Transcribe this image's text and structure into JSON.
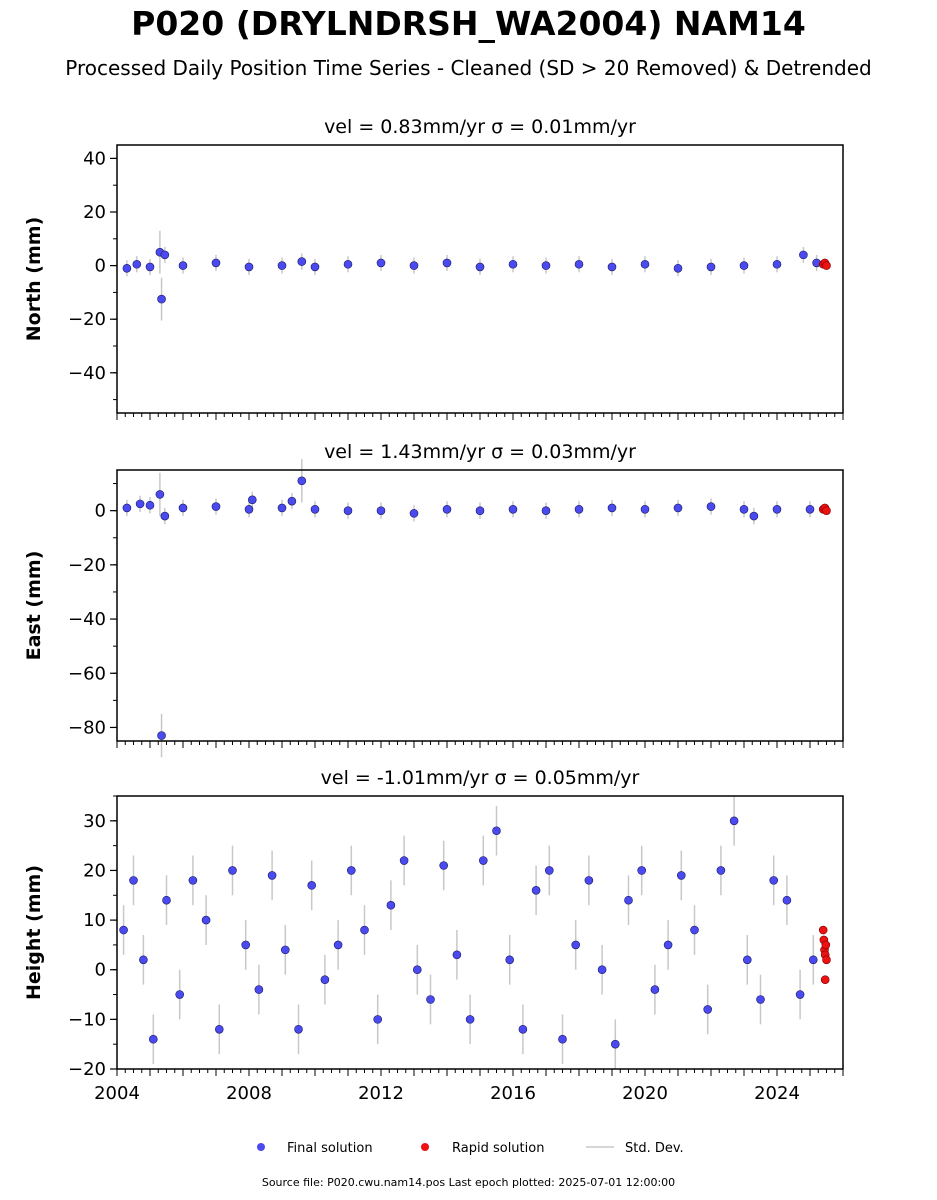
{
  "title": "P020 (DRYLNDRSH_WA2004) NAM14",
  "subtitle": "Processed Daily Position Time Series - Cleaned (SD > 20 Removed) & Detrended",
  "footer": "Source file: P020.cwu.nam14.pos  Last epoch plotted: 2025-07-01 12:00:00",
  "colors": {
    "final": "#4a4af0",
    "final_edge": "#1a1a60",
    "rapid": "#ee1111",
    "stddev": "#c8c8c8"
  },
  "legend": {
    "final": "Final solution",
    "rapid": "Rapid solution",
    "stddev": "Std. Dev."
  },
  "chart_data": [
    {
      "type": "scatter",
      "title": "vel = 0.83mm/yr   σ = 0.01mm/yr",
      "ylabel": "North (mm)",
      "xlim": [
        2004.0,
        2026.0
      ],
      "ylim": [
        -55,
        45
      ],
      "yticks": [
        -40,
        -20,
        0,
        20,
        40
      ],
      "xticks": [],
      "series": [
        {
          "name": "Final solution",
          "x": [
            2004.3,
            2004.6,
            2005.0,
            2005.3,
            2005.35,
            2005.45,
            2006.0,
            2007.0,
            2008.0,
            2009.0,
            2009.6,
            2010.0,
            2011.0,
            2012.0,
            2013.0,
            2014.0,
            2015.0,
            2016.0,
            2017.0,
            2018.0,
            2019.0,
            2020.0,
            2021.0,
            2022.0,
            2023.0,
            2024.0,
            2024.8,
            2025.2
          ],
          "y": [
            -1,
            0.5,
            -0.5,
            5,
            -12.5,
            4,
            0,
            1,
            -0.5,
            0,
            1.5,
            -0.5,
            0.5,
            1,
            0,
            1,
            -0.5,
            0.5,
            0,
            0.5,
            -0.5,
            0.5,
            -1,
            -0.5,
            0,
            0.5,
            4,
            1
          ]
        },
        {
          "name": "Rapid solution",
          "x": [
            2025.4,
            2025.45,
            2025.5
          ],
          "y": [
            0.5,
            1,
            0
          ]
        }
      ]
    },
    {
      "type": "scatter",
      "title": "vel = 1.43mm/yr   σ = 0.03mm/yr",
      "ylabel": "East (mm)",
      "xlim": [
        2004.0,
        2026.0
      ],
      "ylim": [
        -85,
        15
      ],
      "yticks": [
        -80,
        -60,
        -40,
        -20,
        0
      ],
      "xticks": [],
      "series": [
        {
          "name": "Final solution",
          "x": [
            2004.3,
            2004.7,
            2005.0,
            2005.3,
            2005.35,
            2005.45,
            2006.0,
            2007.0,
            2008.0,
            2008.1,
            2009.0,
            2009.3,
            2009.6,
            2010.0,
            2011.0,
            2012.0,
            2013.0,
            2014.0,
            2015.0,
            2016.0,
            2017.0,
            2018.0,
            2019.0,
            2020.0,
            2021.0,
            2022.0,
            2023.0,
            2023.3,
            2024.0,
            2025.0
          ],
          "y": [
            1,
            2.5,
            2,
            6,
            -83,
            -2,
            1,
            1.5,
            0.5,
            4,
            1,
            3.5,
            11,
            0.5,
            0,
            0,
            -1,
            0.5,
            0,
            0.5,
            0,
            0.5,
            1,
            0.5,
            1,
            1.5,
            0.5,
            -2,
            0.5,
            0.5
          ]
        },
        {
          "name": "Rapid solution",
          "x": [
            2025.4,
            2025.45,
            2025.5
          ],
          "y": [
            0.5,
            1,
            0
          ]
        }
      ]
    },
    {
      "type": "scatter",
      "title": "vel = -1.01mm/yr   σ = 0.05mm/yr",
      "ylabel": "Height (mm)",
      "xlim": [
        2004.0,
        2026.0
      ],
      "ylim": [
        -20,
        35
      ],
      "yticks": [
        -20,
        -10,
        0,
        10,
        20,
        30
      ],
      "xticks": [
        2004,
        2008,
        2012,
        2016,
        2020,
        2024
      ],
      "series": [
        {
          "name": "Final solution",
          "x": [
            2004.2,
            2004.5,
            2004.8,
            2005.1,
            2005.5,
            2005.9,
            2006.3,
            2006.7,
            2007.1,
            2007.5,
            2007.9,
            2008.3,
            2008.7,
            2009.1,
            2009.5,
            2009.9,
            2010.3,
            2010.7,
            2011.1,
            2011.5,
            2011.9,
            2012.3,
            2012.7,
            2013.1,
            2013.5,
            2013.9,
            2014.3,
            2014.7,
            2015.1,
            2015.5,
            2015.9,
            2016.3,
            2016.7,
            2017.1,
            2017.5,
            2017.9,
            2018.3,
            2018.7,
            2019.1,
            2019.5,
            2019.9,
            2020.3,
            2020.7,
            2021.1,
            2021.5,
            2021.9,
            2022.3,
            2022.7,
            2023.1,
            2023.5,
            2023.9,
            2024.3,
            2024.7,
            2025.1
          ],
          "y": [
            8,
            18,
            2,
            -14,
            14,
            -5,
            18,
            10,
            -12,
            20,
            5,
            -4,
            19,
            4,
            -12,
            17,
            -2,
            5,
            20,
            8,
            -10,
            13,
            22,
            0,
            -6,
            21,
            3,
            -10,
            22,
            28,
            2,
            -12,
            16,
            20,
            -14,
            5,
            18,
            0,
            -15,
            14,
            20,
            -4,
            5,
            19,
            8,
            -8,
            20,
            30,
            2,
            -6,
            18,
            14,
            -5,
            2
          ]
        },
        {
          "name": "Rapid solution",
          "x": [
            2025.4,
            2025.42,
            2025.44,
            2025.46,
            2025.48,
            2025.5,
            2025.46
          ],
          "y": [
            8,
            6,
            4,
            3,
            5,
            2,
            -2
          ]
        }
      ]
    }
  ]
}
